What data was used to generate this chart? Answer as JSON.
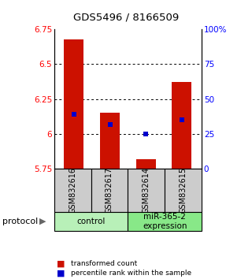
{
  "title": "GDS5496 / 8166509",
  "samples": [
    "GSM832616",
    "GSM832617",
    "GSM832614",
    "GSM832615"
  ],
  "bar_bottoms": [
    5.75,
    5.75,
    5.75,
    5.75
  ],
  "bar_tops": [
    6.68,
    6.15,
    5.82,
    6.37
  ],
  "percentile_values": [
    6.14,
    6.07,
    6.0,
    6.1
  ],
  "ylim_left": [
    5.75,
    6.75
  ],
  "ylim_right": [
    0,
    100
  ],
  "yticks_left": [
    5.75,
    6.0,
    6.25,
    6.5,
    6.75
  ],
  "ytick_labels_left": [
    "5.75",
    "6",
    "6.25",
    "6.5",
    "6.75"
  ],
  "yticks_right": [
    0,
    25,
    50,
    75,
    100
  ],
  "ytick_labels_right": [
    "0",
    "25",
    "50",
    "75",
    "100%"
  ],
  "dotted_lines": [
    6.0,
    6.25,
    6.5
  ],
  "groups": [
    {
      "label": "control",
      "cols": [
        0,
        1
      ],
      "color": "#b8f0b8"
    },
    {
      "label": "miR-365-2\nexpression",
      "cols": [
        2,
        3
      ],
      "color": "#88e888"
    }
  ],
  "bar_color": "#cc1100",
  "percentile_color": "#0000cc",
  "bg_color": "#ffffff",
  "sample_bg_color": "#cccccc",
  "legend_red_label": "transformed count",
  "legend_blue_label": "percentile rank within the sample",
  "protocol_label": "protocol"
}
